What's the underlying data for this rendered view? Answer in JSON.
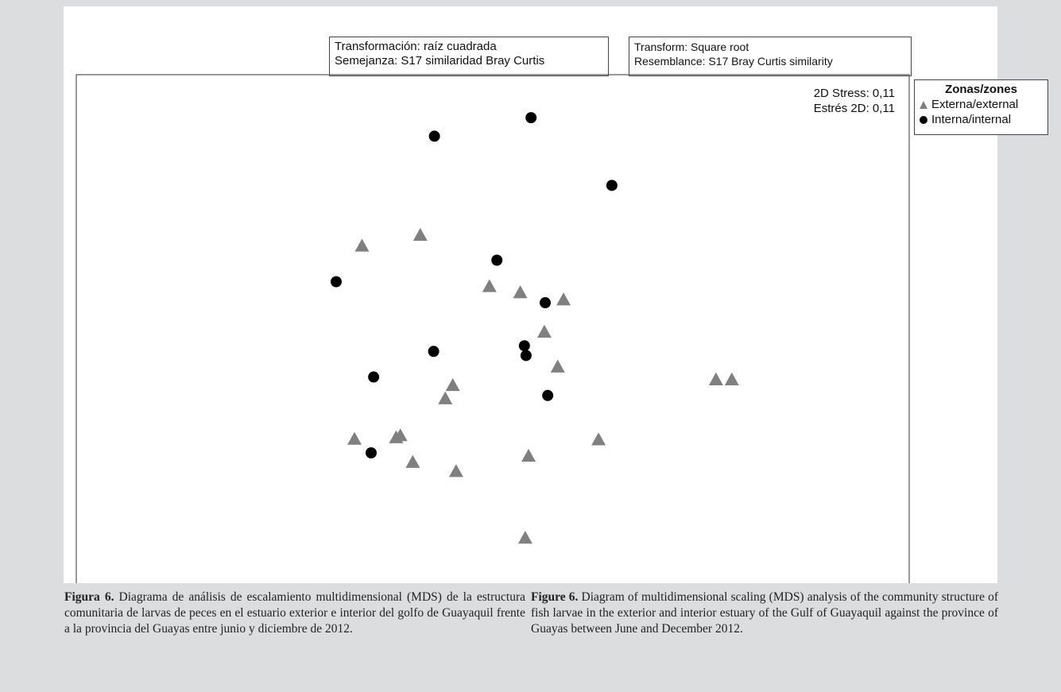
{
  "header": {
    "box_es": [
      "Transformación: raíz cuadrada",
      "Semejanza: S17 similaridad Bray Curtis"
    ],
    "box_en": [
      "Transform: Square root",
      "Resemblance: S17 Bray Curtis similarity"
    ]
  },
  "stress": [
    "2D Stress: 0,11",
    "Estrés 2D: 0,11"
  ],
  "legend": {
    "title": "Zonas/zones",
    "items": [
      {
        "label": "Externa/external",
        "marker": "triangle",
        "color": "#808080"
      },
      {
        "label": "Interna/internal",
        "marker": "circle",
        "color": "#000000"
      }
    ]
  },
  "chart_data": {
    "type": "scatter",
    "xlim": [
      0,
      100
    ],
    "ylim": [
      0,
      100
    ],
    "grid": false,
    "legend_position": "right-outside-top",
    "series": [
      {
        "name": "Externa/external",
        "marker": "triangle",
        "color": "#808080",
        "points": [
          [
            34.3,
            66.6
          ],
          [
            41.3,
            68.7
          ],
          [
            49.6,
            58.7
          ],
          [
            53.3,
            57.5
          ],
          [
            58.5,
            56.1
          ],
          [
            56.2,
            49.8
          ],
          [
            45.2,
            39.4
          ],
          [
            57.8,
            43.0
          ],
          [
            44.3,
            36.8
          ],
          [
            38.4,
            29.2
          ],
          [
            38.9,
            29.6
          ],
          [
            33.4,
            28.9
          ],
          [
            40.4,
            24.4
          ],
          [
            45.6,
            22.6
          ],
          [
            54.3,
            25.6
          ],
          [
            62.7,
            28.8
          ],
          [
            53.9,
            9.6
          ],
          [
            76.8,
            40.5
          ],
          [
            78.7,
            40.5
          ]
        ]
      },
      {
        "name": "Interna/internal",
        "marker": "circle",
        "color": "#000000",
        "points": [
          [
            43.0,
            88.0
          ],
          [
            54.6,
            91.6
          ],
          [
            64.3,
            78.4
          ],
          [
            50.5,
            63.8
          ],
          [
            31.2,
            59.6
          ],
          [
            56.3,
            55.5
          ],
          [
            53.8,
            47.1
          ],
          [
            54.0,
            45.2
          ],
          [
            42.9,
            46.0
          ],
          [
            35.7,
            41.0
          ],
          [
            56.6,
            37.4
          ],
          [
            35.4,
            26.2
          ]
        ]
      }
    ]
  },
  "captions": {
    "es": {
      "label": "Figura 6.",
      "text": " Diagrama de análisis de escalamiento multidimensional (MDS) de la estructura comunitaria de larvas de peces en el estuario exterior e interior del golfo de Guayaquil frente a la provincia del Guayas entre junio y diciembre de 2012."
    },
    "en": {
      "label": "Figure 6.",
      "text": " Diagram of multidimensional scaling (MDS) analysis of the community structure of fish larvae in the exterior and interior estuary of the Gulf of Guayaquil against the province of Guayas between June and December 2012."
    }
  }
}
